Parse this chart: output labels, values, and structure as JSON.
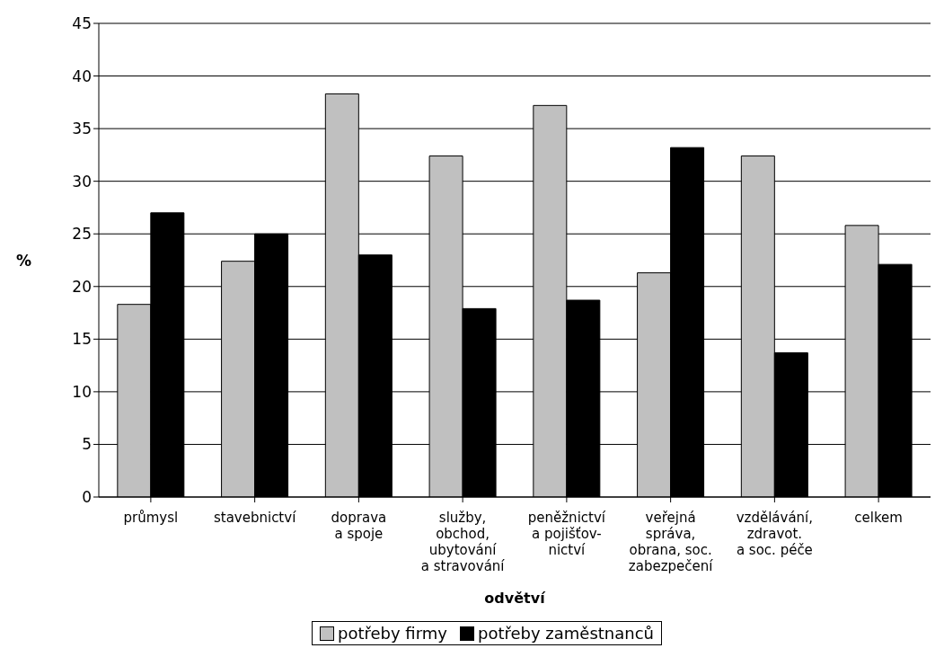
{
  "chart_data": {
    "type": "bar",
    "xlabel": "odvětví",
    "ylabel": "%",
    "categories": [
      "průmysl",
      "stavebnictví",
      "doprava\na spoje",
      "služby,\nobchod,\nubytování\na stravování",
      "peněžnictví\na pojišťov-\nnictví",
      "veřejná\nspráva,\nobrana, soc.\nzabezpečení",
      "vzdělávání,\nzdravot.\na soc. péče",
      "celkem"
    ],
    "series": [
      {
        "name": "potřeby firmy",
        "color": "#c0c0c0",
        "values": [
          18.3,
          22.4,
          38.3,
          32.4,
          37.2,
          21.3,
          32.4,
          25.8
        ]
      },
      {
        "name": "potřeby zaměstnanců",
        "color": "#000000",
        "values": [
          27.0,
          25.0,
          23.0,
          17.9,
          18.7,
          33.2,
          13.7,
          22.1
        ]
      }
    ],
    "ylim": [
      0,
      45
    ],
    "yticks": [
      0,
      5,
      10,
      15,
      20,
      25,
      30,
      35,
      40,
      45
    ],
    "grid": "y",
    "legend": "bottom"
  }
}
